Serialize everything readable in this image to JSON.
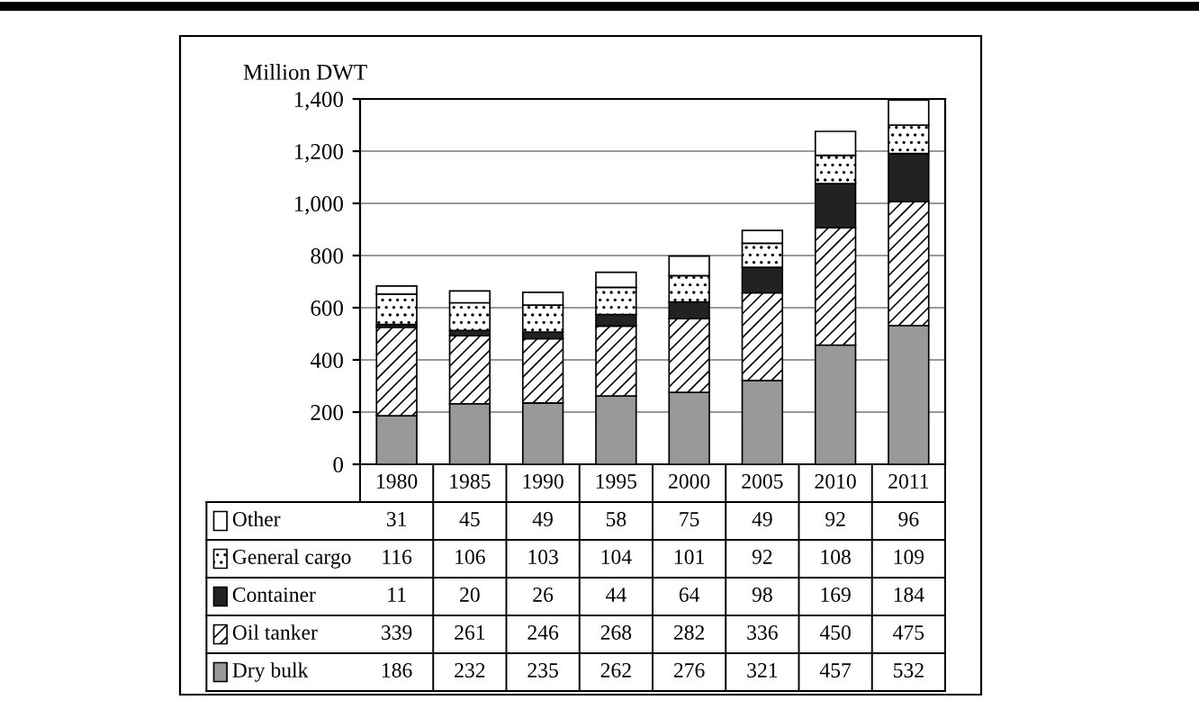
{
  "chart_data": {
    "type": "bar",
    "stacked": true,
    "ylabel": "Million DWT",
    "categories": [
      "1980",
      "1985",
      "1990",
      "1995",
      "2000",
      "2005",
      "2010",
      "2011"
    ],
    "series": [
      {
        "name": "Dry bulk",
        "color": "#999999",
        "values": [
          186,
          232,
          235,
          262,
          276,
          321,
          457,
          532
        ]
      },
      {
        "name": "Oil tanker",
        "color": "#000000",
        "values": [
          339,
          261,
          246,
          268,
          282,
          336,
          450,
          475
        ]
      },
      {
        "name": "Container",
        "color": "#222222",
        "values": [
          11,
          20,
          26,
          44,
          64,
          98,
          169,
          184
        ]
      },
      {
        "name": "General cargo",
        "color": "#000000",
        "values": [
          116,
          106,
          103,
          104,
          101,
          92,
          108,
          109
        ]
      },
      {
        "name": "Other",
        "color": "#ffffff",
        "values": [
          31,
          45,
          49,
          58,
          75,
          49,
          92,
          96
        ]
      }
    ],
    "ylim": [
      0,
      1400
    ],
    "yticks": [
      {
        "value": 0,
        "label": "0"
      },
      {
        "value": 200,
        "label": "200"
      },
      {
        "value": 400,
        "label": "400"
      },
      {
        "value": 600,
        "label": "600"
      },
      {
        "value": 800,
        "label": "800"
      },
      {
        "value": 1000,
        "label": "1,000"
      },
      {
        "value": 1200,
        "label": "1,200"
      },
      {
        "value": 1400,
        "label": "1,400"
      }
    ],
    "grid": "y",
    "data_labels": true,
    "legend": "left"
  }
}
